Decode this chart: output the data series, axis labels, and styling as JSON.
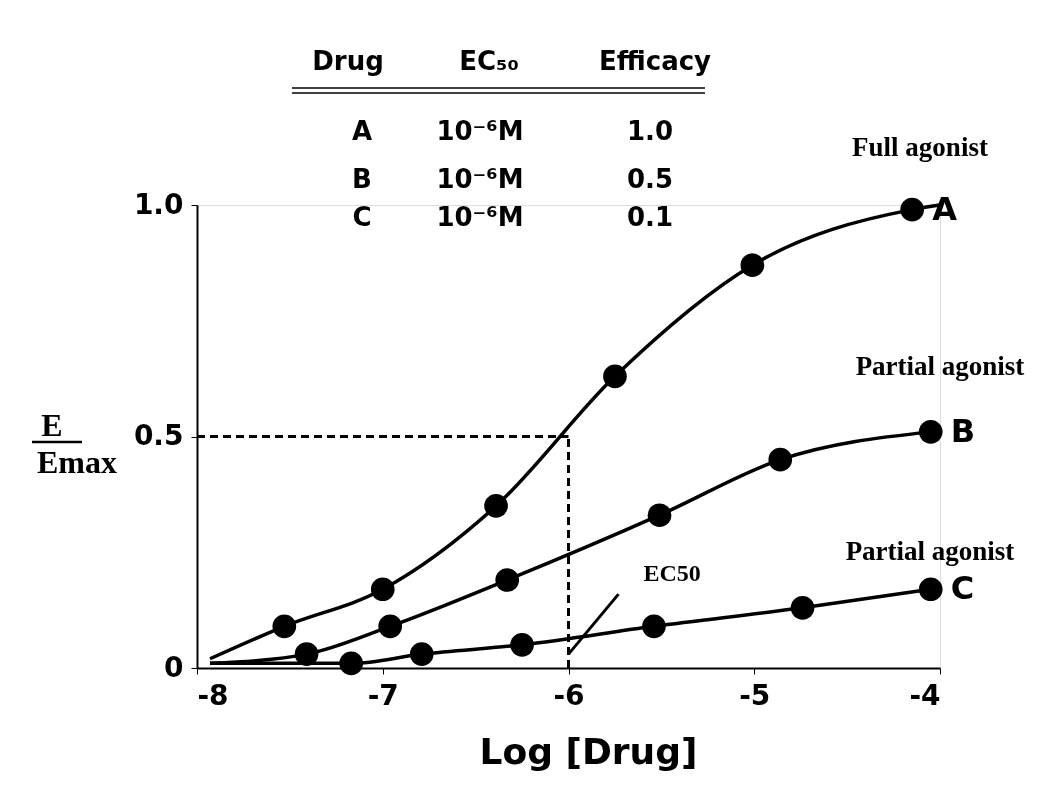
{
  "chart_data": {
    "type": "line",
    "xlabel": "Log [Drug]",
    "ylabel": "E\nEmax",
    "xlim": [
      -8,
      -4
    ],
    "xticks": [
      -8,
      -7,
      -6,
      -5,
      -4
    ],
    "ylim": [
      0,
      1
    ],
    "yticks": [
      0,
      {
        "value": 0.5,
        "label": "0.5"
      },
      {
        "value": 1,
        "label": "1.0"
      }
    ],
    "grid": false,
    "legend": false,
    "series": [
      {
        "color": "#000000",
        "line_style": "solid",
        "x": [
          -7.93,
          -7.53,
          -7.0,
          -6.39,
          -5.75,
          -5.01,
          -4.15,
          -4.0
        ],
        "values": [
          0.02,
          0.09,
          0.17,
          0.35,
          0.63,
          0.87,
          0.99,
          1.0
        ]
      },
      {
        "color": "#000000",
        "line_style": "solid",
        "x": [
          -7.93,
          -7.41,
          -6.96,
          -6.33,
          -5.51,
          -4.86,
          -4.05
        ],
        "values": [
          0.01,
          0.03,
          0.09,
          0.19,
          0.33,
          0.45,
          0.51
        ]
      },
      {
        "color": "#000000",
        "line_style": "solid",
        "x": [
          -7.93,
          -7.17,
          -6.79,
          -6.25,
          -5.54,
          -4.74,
          -4.05
        ],
        "values": [
          0.01,
          0.01,
          0.03,
          0.05,
          0.09,
          0.13,
          0.17
        ]
      },
      {
        "type": "scatter",
        "name": "A",
        "color": "#000000",
        "marker": "circle",
        "x": [
          -7.53,
          -7.0,
          -6.39,
          -5.75,
          -5.01,
          -4.15
        ],
        "values": [
          0.09,
          0.17,
          0.35,
          0.63,
          0.87,
          0.99
        ]
      },
      {
        "type": "scatter",
        "name": "B",
        "color": "#000000",
        "marker": "circle",
        "x": [
          -7.41,
          -6.96,
          -6.33,
          -5.51,
          -4.86,
          -4.05
        ],
        "values": [
          0.03,
          0.09,
          0.19,
          0.33,
          0.45,
          0.51
        ]
      },
      {
        "type": "scatter",
        "name": "C",
        "color": "#000000",
        "marker": "circle",
        "x": [
          -7.17,
          -6.79,
          -6.25,
          -5.54,
          -4.74,
          -4.05
        ],
        "values": [
          0.01,
          0.03,
          0.05,
          0.09,
          0.13,
          0.17
        ]
      }
    ],
    "ref_lines": [
      {
        "axis": "y",
        "value": 0.5,
        "line_style": "dashed",
        "color": "#000000"
      },
      {
        "axis": "x",
        "value": -6,
        "line_style": "dashed",
        "color": "#000000"
      }
    ],
    "annotations": [
      "Drug",
      "EC₅₀",
      "Efficacy",
      "A",
      "10⁻⁶M",
      "1.0",
      "B",
      "10⁻⁶M",
      "0.5",
      "C",
      "10⁻⁶M",
      "0.1",
      "Full agonist",
      "Partial agonist",
      "Partial agonist",
      {
        "text": "EC50",
        "x": -6,
        "y": 0.03
      }
    ]
  }
}
